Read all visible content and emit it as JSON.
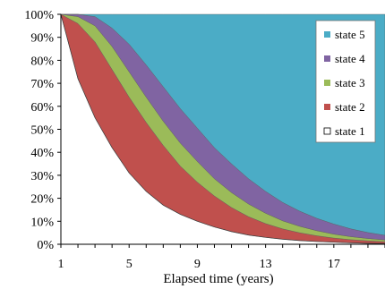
{
  "chart_data": {
    "type": "area",
    "stacked": "percent",
    "title": "",
    "xlabel": "Elapsed time (years)",
    "ylabel": "",
    "xlim": [
      1,
      20
    ],
    "ylim": [
      0,
      100
    ],
    "x_ticks": [
      1,
      5,
      9,
      13,
      17
    ],
    "y_ticks": [
      "0%",
      "10%",
      "20%",
      "30%",
      "40%",
      "50%",
      "60%",
      "70%",
      "80%",
      "90%",
      "100%"
    ],
    "grid": false,
    "legend_position": "top-right",
    "x": [
      1,
      2,
      3,
      4,
      5,
      6,
      7,
      8,
      9,
      10,
      11,
      12,
      13,
      14,
      15,
      16,
      17,
      18,
      19,
      20
    ],
    "series": [
      {
        "name": "state 1",
        "color": "#ffffff",
        "values": [
          100,
          72,
          55,
          42,
          31,
          23,
          17,
          13,
          10,
          7.5,
          5.5,
          4.0,
          3.0,
          2.2,
          1.6,
          1.2,
          0.9,
          0.6,
          0.4,
          0.3
        ]
      },
      {
        "name": "state 2",
        "color": "#c0504d",
        "values": [
          0,
          24,
          33,
          34,
          33,
          30,
          26,
          21,
          17,
          13.5,
          10.5,
          8.0,
          6.0,
          4.5,
          3.4,
          2.5,
          1.8,
          1.4,
          1.1,
          0.8
        ]
      },
      {
        "name": "state 3",
        "color": "#9bbb59",
        "values": [
          0,
          3,
          7,
          10,
          11,
          11,
          10.5,
          10,
          9,
          7.5,
          6.5,
          5.5,
          4.5,
          3.5,
          2.8,
          2.2,
          1.7,
          1.3,
          1.0,
          0.8
        ]
      },
      {
        "name": "state 4",
        "color": "#8064a2",
        "values": [
          0,
          1,
          4,
          8,
          12,
          14,
          15,
          15,
          14.5,
          13.5,
          12.5,
          11,
          9.5,
          8,
          6.6,
          5.4,
          4.4,
          3.4,
          2.6,
          2.0
        ]
      },
      {
        "name": "state 5",
        "color": "#4bacc6",
        "values": [
          0,
          0,
          1,
          6,
          13,
          22,
          31.5,
          41,
          49.5,
          58,
          65,
          71.5,
          77,
          81.8,
          85.6,
          88.7,
          91.2,
          93.3,
          94.9,
          96.1
        ]
      }
    ],
    "legend_order": [
      "state 5",
      "state 4",
      "state 3",
      "state 2",
      "state 1"
    ]
  }
}
